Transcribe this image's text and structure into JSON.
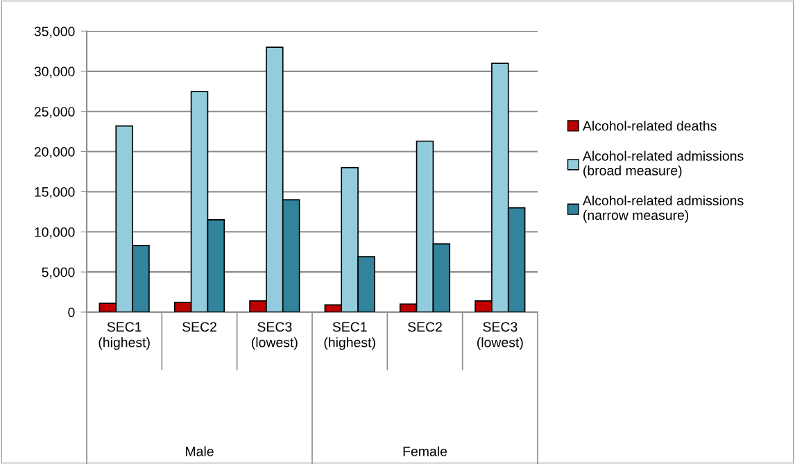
{
  "chart_data": {
    "type": "bar",
    "categories": [
      "SEC1\n(highest)",
      "SEC2",
      "SEC3\n(lowest)",
      "SEC1\n(highest)",
      "SEC2",
      "SEC3\n(lowest)"
    ],
    "series": [
      {
        "name": "Alcohol-related deaths",
        "color": "#c00000",
        "values": [
          1100,
          1200,
          1400,
          900,
          1000,
          1400
        ]
      },
      {
        "name": "Alcohol-related admissions\n(broad measure)",
        "color": "#93cddd",
        "values": [
          23200,
          27500,
          33000,
          18000,
          21300,
          31000
        ]
      },
      {
        "name": "Alcohol-related admissions\n(narrow measure)",
        "color": "#31849b",
        "values": [
          8300,
          11500,
          14000,
          6900,
          8500,
          13000
        ]
      }
    ],
    "annotations": [
      "Male",
      "Female"
    ],
    "ylim": [
      0,
      35000
    ],
    "yticks": [
      {
        "value": 0,
        "label": "0"
      },
      {
        "value": 5000,
        "label": "5,000"
      },
      {
        "value": 10000,
        "label": "10,000"
      },
      {
        "value": 15000,
        "label": "15,000"
      },
      {
        "value": 20000,
        "label": "20,000"
      },
      {
        "value": 25000,
        "label": "25,000"
      },
      {
        "value": 30000,
        "label": "30,000"
      },
      {
        "value": 35000,
        "label": "35,000"
      }
    ],
    "grid": "y",
    "legend": "right"
  }
}
